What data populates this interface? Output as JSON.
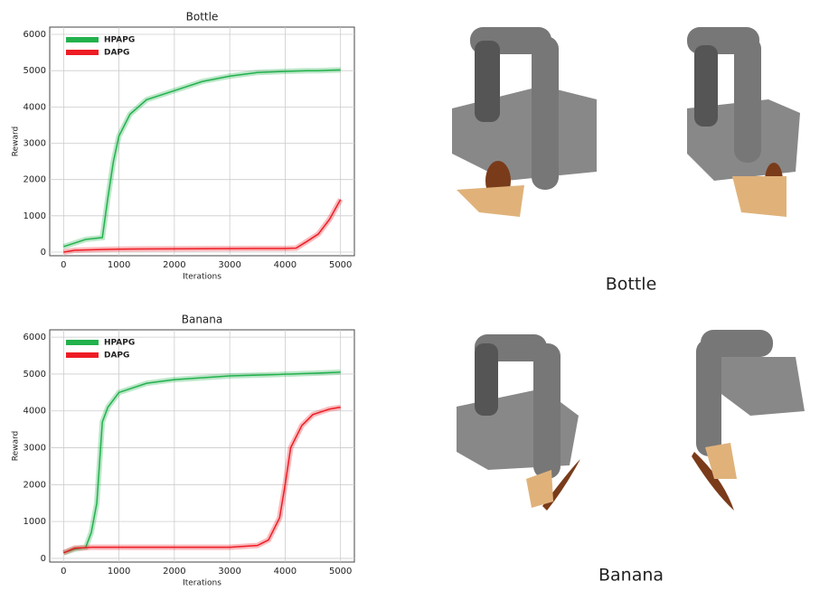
{
  "chart_data": [
    {
      "type": "line",
      "title": "Bottle",
      "xlabel": "Iterations",
      "ylabel": "Reward",
      "x": [
        0,
        200,
        400,
        700,
        800,
        900,
        1000,
        1200,
        1500,
        2000,
        2500,
        3000,
        3500,
        4000,
        4200,
        4400,
        4600,
        4800,
        5000
      ],
      "series": [
        {
          "name": "HPAPG",
          "color": "#22b14c",
          "values": [
            150,
            250,
            350,
            400,
            1500,
            2500,
            3200,
            3800,
            4200,
            4450,
            4700,
            4850,
            4950,
            4980,
            4990,
            5000,
            5000,
            5010,
            5020
          ]
        },
        {
          "name": "DAPG",
          "color": "#ee1c24",
          "values": [
            0,
            50,
            60,
            70,
            75,
            78,
            80,
            85,
            88,
            90,
            92,
            95,
            98,
            100,
            110,
            300,
            500,
            900,
            1450
          ]
        }
      ],
      "xlim": [
        -250,
        5250
      ],
      "ylim": [
        -100,
        6200
      ],
      "xticks": [
        0,
        1000,
        2000,
        3000,
        4000,
        5000
      ],
      "yticks": [
        0,
        1000,
        2000,
        3000,
        4000,
        5000,
        6000
      ],
      "grid": true,
      "legend": "upper left"
    },
    {
      "type": "line",
      "title": "Banana",
      "xlabel": "Iterations",
      "ylabel": "Reward",
      "x": [
        0,
        200,
        400,
        500,
        600,
        700,
        800,
        1000,
        1500,
        2000,
        3000,
        3500,
        3700,
        3900,
        4000,
        4100,
        4300,
        4500,
        4800,
        5000
      ],
      "series": [
        {
          "name": "HPAPG",
          "color": "#22b14c",
          "values": [
            150,
            250,
            300,
            700,
            1500,
            3700,
            4100,
            4500,
            4750,
            4850,
            4950,
            4970,
            4980,
            4990,
            5000,
            5000,
            5010,
            5020,
            5040,
            5050
          ]
        },
        {
          "name": "DAPG",
          "color": "#ee1c24",
          "values": [
            150,
            280,
            290,
            300,
            300,
            300,
            300,
            300,
            300,
            300,
            300,
            350,
            500,
            1100,
            2000,
            3000,
            3600,
            3900,
            4050,
            4100
          ]
        }
      ],
      "xlim": [
        -250,
        5250
      ],
      "ylim": [
        -100,
        6200
      ],
      "xticks": [
        0,
        1000,
        2000,
        3000,
        4000,
        5000
      ],
      "yticks": [
        0,
        1000,
        2000,
        3000,
        4000,
        5000,
        6000
      ],
      "grid": true,
      "legend": "upper left"
    }
  ],
  "images": [
    {
      "caption": "Bottle"
    },
    {
      "caption": "Banana"
    }
  ]
}
